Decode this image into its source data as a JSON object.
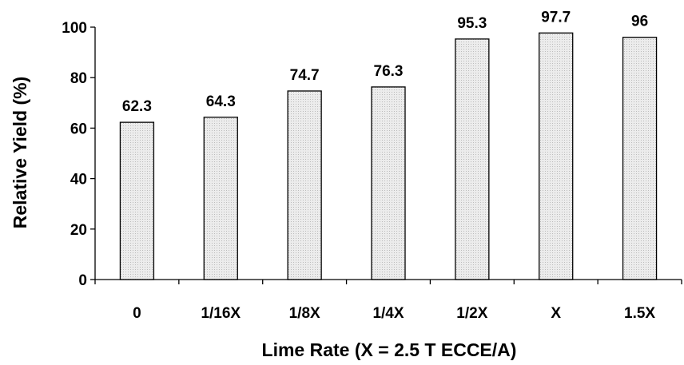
{
  "chart_data": {
    "type": "bar",
    "categories": [
      "0",
      "1/16X",
      "1/8X",
      "1/4X",
      "1/2X",
      "X",
      "1.5X"
    ],
    "values": [
      62.3,
      64.3,
      74.7,
      76.3,
      95.3,
      97.7,
      96
    ],
    "data_labels": [
      "62.3",
      "64.3",
      "74.7",
      "76.3",
      "95.3",
      "97.7",
      "96"
    ],
    "title": "",
    "xlabel": "Lime Rate (X = 2.5 T ECCE/A)",
    "ylabel": "Relative Yield (%)",
    "ylim": [
      0,
      100
    ],
    "yticks": [
      "0",
      "20",
      "40",
      "60",
      "80",
      "100"
    ],
    "grid": false,
    "bar_fill": "#e4e4e4",
    "bar_outline": "#000000"
  }
}
